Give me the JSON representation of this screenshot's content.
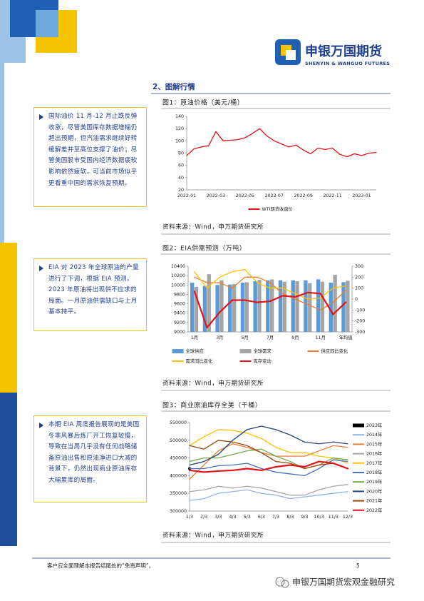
{
  "header": {
    "brand_cn": "申银万国期货",
    "brand_en": "SHENYIN & WANGUO FUTURES"
  },
  "section_title": "2、图解行情",
  "panels": [
    {
      "note": "国际油价 11 月-12 月止跌反弹收涨，尽管美国库存数据增幅仍超出预期，但汽油需求继续好转缓解差并至高位支撑了油价；尽管美国股市受国内经济数据疲软影响依然疲软，可当前市场似乎更看重中国的需求恢复预期。",
      "figure": {
        "type": "line",
        "title": "图1：原油价格（美元/桶）",
        "categories": [
          "2022-01",
          null,
          null,
          null,
          "2022-03",
          null,
          null,
          null,
          "2022-05",
          null,
          null,
          null,
          "2022-07",
          null,
          null,
          null,
          "2022-09",
          null,
          null,
          null,
          "2022-11",
          null,
          null,
          null,
          "2023-01",
          null,
          null
        ],
        "series": [
          {
            "name": "WTI期货收盘价",
            "color": "#e0141a",
            "values": [
              76,
              87,
              90,
              92,
              115,
              100,
              101,
              102,
              105,
              112,
              120,
              108,
              100,
              95,
              90,
              93,
              85,
              79,
              88,
              86,
              88,
              78,
              74,
              79,
              76,
              80,
              81
            ]
          }
        ],
        "ylim": [
          20,
          140
        ],
        "yticks": [
          20,
          40,
          60,
          80,
          100,
          120,
          140
        ],
        "legend": "bottom"
      },
      "source": "资料来源：Wind，申万期货研究所"
    },
    {
      "note": "EIA 对 2023 年全球原油的产量进行了下调，根据 EIA 预测，2023 年原油将出现供不应求的局面。一月原油供需缺口与上月基本持平。",
      "figure": {
        "type": "bar",
        "title": "图2：EIA供需预测（万吨）",
        "categories": [
          "1月",
          null,
          "3月",
          null,
          "5月",
          null,
          "7月",
          null,
          "9月",
          null,
          "11月",
          null,
          "年均值"
        ],
        "series": [
          {
            "name": "全球供应",
            "color": "#5b9bd5",
            "values": [
              10050,
              9980,
              10000,
              10010,
              10050,
              10080,
              10100,
              10100,
              10100,
              10100,
              10120,
              10050,
              10060
            ]
          },
          {
            "name": "全球需求",
            "color": "#a5a5a5",
            "values": [
              9960,
              10230,
              10100,
              10020,
              10060,
              10110,
              10120,
              10070,
              10080,
              10040,
              10070,
              10220,
              10090
            ]
          },
          {
            "name": "供应同比变化",
            "color": "#ed7d31",
            "axis": "y2",
            "values": [
              200,
              150,
              150,
              100,
              200,
              200,
              150,
              50,
              0,
              -50,
              -100,
              -30,
              80
            ]
          },
          {
            "name": "需求同比变化",
            "color": "#ffc000",
            "axis": "y2",
            "values": [
              250,
              100,
              200,
              250,
              270,
              150,
              100,
              100,
              50,
              0,
              10,
              100,
              120
            ]
          },
          {
            "name": "库存变动",
            "color": "#e0141a",
            "axis": "y2",
            "values": [
              70,
              -260,
              -120,
              -10,
              -10,
              -30,
              -20,
              30,
              20,
              60,
              50,
              -140,
              -30
            ]
          }
        ],
        "ylim": [
          9000,
          10400
        ],
        "yticks": [
          9000,
          9200,
          9400,
          9600,
          9800,
          10000,
          10200,
          10400
        ],
        "y2lim": [
          -300,
          300
        ],
        "y2ticks": [
          -300,
          -200,
          -100,
          0,
          100,
          200,
          300
        ],
        "legend": "bottom"
      },
      "source": "资料来源：Wind，申万期货研究所"
    },
    {
      "note": "本期 EIA 周度报告展现的是美国冬季风暴后炼厂开工恢复较慢，导致在当周几乎没有任何战略储备原油出售和原油净进口大减的背景下，仍然出现商业原油库存大幅累库的局面。",
      "figure": {
        "type": "line",
        "title": "图3：商业原油库存全美（千桶）",
        "categories": [
          "1/3",
          "2/3",
          "3/3",
          "4/3",
          "5/3",
          "6/3",
          "7/3",
          "8/3",
          "9/3",
          "10/3",
          "11/3",
          "12/3"
        ],
        "series": [
          {
            "name": "2023年",
            "color": "#000000",
            "values": [
              420000,
              null,
              null,
              null,
              null,
              null,
              null,
              null,
              null,
              null,
              null,
              null
            ]
          },
          {
            "name": "2014年",
            "color": "#8fb4e0",
            "values": [
              330000,
              335000,
              350000,
              355000,
              360000,
              350000,
              345000,
              335000,
              340000,
              345000,
              350000,
              355000
            ]
          },
          {
            "name": "2015年",
            "color": "#ed7d31",
            "values": [
              390000,
              430000,
              470000,
              490000,
              480000,
              465000,
              455000,
              455000,
              455000,
              470000,
              485000,
              480000
            ]
          },
          {
            "name": "2016年",
            "color": "#a5a5a5",
            "values": [
              355000,
              360000,
              370000,
              365000,
              370000,
              365000,
              355000,
              345000,
              345000,
              360000,
              370000,
              375000
            ]
          },
          {
            "name": "2017年",
            "color": "#ffc000",
            "values": [
              485000,
              510000,
              530000,
              528000,
              520000,
              505000,
              480000,
              465000,
              465000,
              455000,
              450000,
              435000
            ]
          },
          {
            "name": "2018年",
            "color": "#4472c4",
            "values": [
              420000,
              420000,
              428000,
              430000,
              435000,
              420000,
              410000,
              405000,
              400000,
              420000,
              445000,
              440000
            ]
          },
          {
            "name": "2019年",
            "color": "#70ad47",
            "values": [
              440000,
              450000,
              450000,
              460000,
              470000,
              475000,
              455000,
              440000,
              420000,
              430000,
              450000,
              445000
            ]
          },
          {
            "name": "2020年",
            "color": "#264478",
            "values": [
              430000,
              440000,
              460000,
              500000,
              530000,
              540000,
              530000,
              515000,
              495000,
              490000,
              495000,
              490000
            ]
          },
          {
            "name": "2021年",
            "color": "#9e480e",
            "values": [
              485000,
              475000,
              500000,
              495000,
              485000,
              465000,
              440000,
              435000,
              420000,
              430000,
              435000,
              420000
            ]
          },
          {
            "name": "2022年",
            "color": "#e0141a",
            "values": [
              415000,
              410000,
              413000,
              415000,
              420000,
              415000,
              425000,
              430000,
              425000,
              440000,
              435000,
              420000
            ]
          }
        ],
        "ylim": [
          300000,
          550000
        ],
        "yticks": [
          300000,
          350000,
          400000,
          450000,
          500000,
          550000
        ],
        "legend": "right"
      },
      "source": "资料来源：Wind，申万期货研究所"
    }
  ],
  "footer": {
    "disclaimer": "客户应全面理解本报告结尾处的“免责声明”。",
    "page": "5",
    "watermark": "申银万国期货宏观金融研究"
  }
}
